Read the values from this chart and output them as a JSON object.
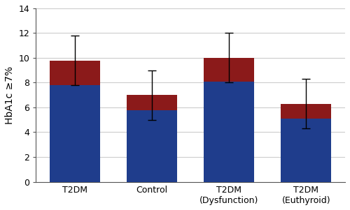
{
  "categories": [
    "T2DM",
    "Control",
    "T2DM\n(Dysfunction)",
    "T2DM\n(Euthyroid)"
  ],
  "blue_values": [
    7.8,
    5.8,
    8.1,
    5.1
  ],
  "red_values": [
    2.0,
    1.2,
    1.9,
    1.2
  ],
  "total_values": [
    9.8,
    7.0,
    10.0,
    6.3
  ],
  "error_upper": [
    2.0,
    2.0,
    2.0,
    2.0
  ],
  "error_lower": [
    2.0,
    2.0,
    2.0,
    2.0
  ],
  "bar_color_blue": "#1F3D8C",
  "bar_color_red": "#8B1A1A",
  "ylabel": "HbA1c ≥7%",
  "ylim": [
    0,
    14
  ],
  "yticks": [
    0,
    2,
    4,
    6,
    8,
    10,
    12,
    14
  ],
  "background_color": "#ffffff",
  "grid_color": "#cccccc",
  "bar_width": 0.65,
  "figure_bg": "#ffffff",
  "ylabel_fontsize": 10,
  "tick_fontsize": 9,
  "xlabel_fontsize": 9
}
